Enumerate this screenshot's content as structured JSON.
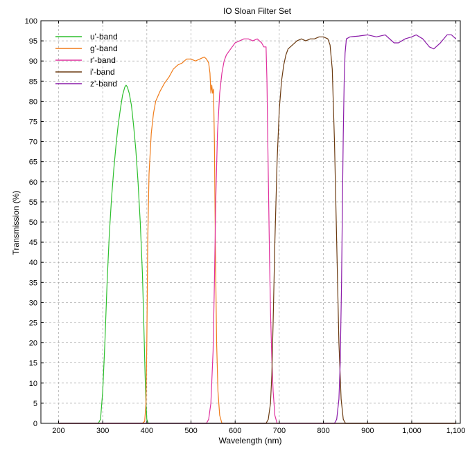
{
  "chart_data": {
    "type": "line",
    "title": "IO Sloan Filter Set",
    "xlabel": "Wavelength (nm)",
    "ylabel": "Transmission (%)",
    "xlim": [
      160,
      1110
    ],
    "ylim": [
      0,
      100
    ],
    "x_ticks": [
      200,
      300,
      400,
      500,
      600,
      700,
      800,
      900,
      1000,
      1100
    ],
    "x_tick_labels": [
      "200",
      "300",
      "400",
      "500",
      "600",
      "700",
      "800",
      "900",
      "1,000",
      "1,100"
    ],
    "y_ticks": [
      0,
      5,
      10,
      15,
      20,
      25,
      30,
      35,
      40,
      45,
      50,
      55,
      60,
      65,
      70,
      75,
      80,
      85,
      90,
      95,
      100
    ],
    "grid": true,
    "legend_position": "top-left",
    "series": [
      {
        "name": "u'-band",
        "color": "#2dbf2d",
        "points": [
          [
            200,
            0
          ],
          [
            290,
            0
          ],
          [
            295,
            1
          ],
          [
            300,
            8
          ],
          [
            305,
            20
          ],
          [
            310,
            35
          ],
          [
            315,
            47
          ],
          [
            320,
            56
          ],
          [
            325,
            63
          ],
          [
            330,
            69
          ],
          [
            335,
            74
          ],
          [
            340,
            78
          ],
          [
            345,
            81.5
          ],
          [
            350,
            83.5
          ],
          [
            353,
            84
          ],
          [
            356,
            83.5
          ],
          [
            360,
            82
          ],
          [
            365,
            79
          ],
          [
            370,
            74
          ],
          [
            375,
            68
          ],
          [
            380,
            60
          ],
          [
            385,
            50
          ],
          [
            390,
            37
          ],
          [
            393,
            25
          ],
          [
            396,
            12
          ],
          [
            398,
            5
          ],
          [
            400,
            1
          ],
          [
            403,
            0
          ],
          [
            1100,
            0
          ]
        ]
      },
      {
        "name": "g'-band",
        "color": "#f07c1a",
        "points": [
          [
            200,
            0
          ],
          [
            390,
            0
          ],
          [
            395,
            0.5
          ],
          [
            398,
            5
          ],
          [
            400,
            20
          ],
          [
            402,
            45
          ],
          [
            405,
            62
          ],
          [
            410,
            72
          ],
          [
            415,
            77
          ],
          [
            420,
            80
          ],
          [
            430,
            82.5
          ],
          [
            440,
            84.5
          ],
          [
            450,
            86
          ],
          [
            460,
            88
          ],
          [
            470,
            89
          ],
          [
            480,
            89.5
          ],
          [
            490,
            90.5
          ],
          [
            500,
            90.5
          ],
          [
            510,
            90
          ],
          [
            520,
            90.5
          ],
          [
            530,
            91
          ],
          [
            535,
            90.5
          ],
          [
            540,
            89.5
          ],
          [
            543,
            87
          ],
          [
            545,
            82
          ],
          [
            547,
            84
          ],
          [
            549,
            82
          ],
          [
            551,
            83
          ],
          [
            553,
            70
          ],
          [
            555,
            45
          ],
          [
            558,
            20
          ],
          [
            561,
            8
          ],
          [
            565,
            2
          ],
          [
            570,
            0
          ],
          [
            1100,
            0
          ]
        ]
      },
      {
        "name": "r'-band",
        "color": "#e0309e",
        "points": [
          [
            200,
            0
          ],
          [
            535,
            0
          ],
          [
            540,
            1
          ],
          [
            545,
            5
          ],
          [
            550,
            18
          ],
          [
            553,
            35
          ],
          [
            556,
            55
          ],
          [
            560,
            72
          ],
          [
            565,
            82
          ],
          [
            570,
            87
          ],
          [
            575,
            90
          ],
          [
            580,
            91.5
          ],
          [
            590,
            93
          ],
          [
            600,
            94.5
          ],
          [
            610,
            95
          ],
          [
            620,
            95.5
          ],
          [
            630,
            95.5
          ],
          [
            640,
            95
          ],
          [
            650,
            95.5
          ],
          [
            660,
            94.5
          ],
          [
            665,
            93.5
          ],
          [
            670,
            93.5
          ],
          [
            672,
            85
          ],
          [
            674,
            70
          ],
          [
            676,
            55
          ],
          [
            678,
            40
          ],
          [
            680,
            28
          ],
          [
            683,
            16
          ],
          [
            686,
            8
          ],
          [
            690,
            2
          ],
          [
            695,
            0
          ],
          [
            1100,
            0
          ]
        ]
      },
      {
        "name": "i'-band",
        "color": "#6b3a10",
        "points": [
          [
            200,
            0
          ],
          [
            670,
            0
          ],
          [
            675,
            1
          ],
          [
            680,
            5
          ],
          [
            683,
            12
          ],
          [
            686,
            25
          ],
          [
            690,
            45
          ],
          [
            695,
            65
          ],
          [
            700,
            78
          ],
          [
            705,
            85
          ],
          [
            710,
            89
          ],
          [
            715,
            91.5
          ],
          [
            720,
            93
          ],
          [
            730,
            94
          ],
          [
            740,
            95
          ],
          [
            750,
            95.5
          ],
          [
            760,
            95
          ],
          [
            770,
            95.5
          ],
          [
            780,
            95.5
          ],
          [
            790,
            96
          ],
          [
            800,
            96
          ],
          [
            810,
            95.5
          ],
          [
            815,
            94
          ],
          [
            820,
            88
          ],
          [
            825,
            70
          ],
          [
            830,
            45
          ],
          [
            835,
            20
          ],
          [
            840,
            6
          ],
          [
            845,
            1
          ],
          [
            850,
            0
          ],
          [
            1100,
            0
          ]
        ]
      },
      {
        "name": "z'-band",
        "color": "#8a1aa8",
        "points": [
          [
            200,
            0
          ],
          [
            825,
            0
          ],
          [
            830,
            1
          ],
          [
            835,
            6
          ],
          [
            838,
            15
          ],
          [
            841,
            35
          ],
          [
            843,
            55
          ],
          [
            845,
            72
          ],
          [
            847,
            85
          ],
          [
            849,
            92
          ],
          [
            852,
            95.5
          ],
          [
            860,
            96
          ],
          [
            880,
            96.2
          ],
          [
            900,
            96.5
          ],
          [
            920,
            96
          ],
          [
            940,
            96.5
          ],
          [
            960,
            94.5
          ],
          [
            970,
            94.5
          ],
          [
            985,
            95.5
          ],
          [
            1000,
            96
          ],
          [
            1010,
            96.5
          ],
          [
            1025,
            95.5
          ],
          [
            1040,
            93.5
          ],
          [
            1050,
            93
          ],
          [
            1065,
            94.5
          ],
          [
            1080,
            96.5
          ],
          [
            1090,
            96.5
          ],
          [
            1100,
            95.5
          ]
        ]
      }
    ]
  }
}
